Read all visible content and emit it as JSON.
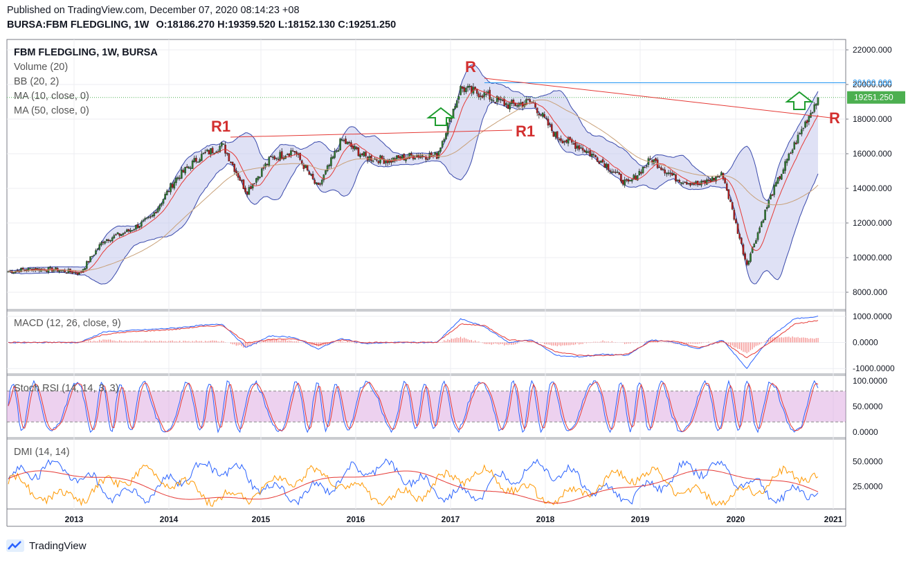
{
  "header": {
    "published": "Published on TradingView.com, December 07, 2020 08:14:23 +08",
    "symbol": "BURSA:FBM FLEDGLING, 1W",
    "o_label": "O:",
    "o_value": "18186.270",
    "h_label": "H:",
    "h_value": "19359.520",
    "l_label": "L:",
    "l_value": "18152.130",
    "c_label": "C:",
    "c_value": "19251.250"
  },
  "legend": {
    "title": "FBM FLEDGLING, 1W, BURSA",
    "volume": "Volume (20)",
    "bb": "BB (20, 2)",
    "ma10": "MA (10, close, 0)",
    "ma50": "MA (50, close, 0)",
    "macd": "MACD (12, 26, close, 9)",
    "stoch": "Stoch RSI (14, 14, 3, 3)",
    "dmi": "DMI (14, 14)"
  },
  "branding": {
    "name": "TradingView"
  },
  "colors": {
    "up": "#2f7d32",
    "down": "#b71c1c",
    "bb_line": "#3949ab",
    "bb_fill": "#c5c8ec",
    "ma10": "#e53935",
    "ma50": "#c8a078",
    "resistance": "#e53935",
    "annotation_text": "#d32f2f",
    "arrow": "#1e9c2e",
    "level_line": "#2196f3",
    "price_tag": "#4caf50",
    "macd_line": "#2962ff",
    "signal_line": "#e53935",
    "hist": "#ef5350",
    "stoch_k": "#2962ff",
    "stoch_d": "#e53935",
    "stoch_band": "#dba4e0",
    "dmi_plus": "#2962ff",
    "dmi_minus": "#ff9800",
    "adx": "#e53935"
  },
  "chart_data": [
    {
      "type": "candlestick",
      "title": "FBM FLEDGLING, 1W, BURSA",
      "x": [
        "2012-06",
        "2012-09",
        "2012-12",
        "2013-03",
        "2013-06",
        "2013-09",
        "2013-12",
        "2014-03",
        "2014-06",
        "2014-09",
        "2014-12",
        "2015-03",
        "2015-06",
        "2015-09",
        "2015-12",
        "2016-03",
        "2016-06",
        "2016-09",
        "2016-12",
        "2017-03",
        "2017-06",
        "2017-09",
        "2017-12",
        "2018-03",
        "2018-06",
        "2018-09",
        "2018-12",
        "2019-03",
        "2019-06",
        "2019-09",
        "2019-12",
        "2020-03",
        "2020-06",
        "2020-09",
        "2020-12"
      ],
      "close": [
        9200,
        9350,
        9300,
        9100,
        11000,
        11500,
        12300,
        14500,
        15800,
        16500,
        13800,
        15700,
        16200,
        14000,
        16800,
        15800,
        15600,
        15900,
        15900,
        19800,
        19400,
        18800,
        19000,
        17000,
        16400,
        15500,
        14200,
        15700,
        14600,
        14200,
        14800,
        9600,
        13500,
        16500,
        19251
      ],
      "x_ticks": [
        "2013",
        "2014",
        "2015",
        "2016",
        "2017",
        "2018",
        "2019",
        "2020",
        "2021"
      ],
      "y_ticks": [
        "22000.000",
        "20000.000",
        "18000.000",
        "16000.000",
        "14000.000",
        "12000.000",
        "10000.000",
        "8000.000"
      ],
      "ylim": [
        7000,
        22600
      ],
      "level_label": "20100.000",
      "last_price": "19251.250",
      "annotations": {
        "r1_left": "R1",
        "r1_right": "R1",
        "r_top": "R",
        "r_right": "R"
      },
      "overlays": [
        "BB (20, 2)",
        "MA (10, close, 0)",
        "MA (50, close, 0)"
      ]
    },
    {
      "type": "line",
      "title": "MACD (12, 26, close, 9)",
      "y_ticks": [
        "1000.0000",
        "0.0000",
        "-1000.0000"
      ],
      "ylim": [
        -1100,
        1100
      ],
      "macd": [
        0,
        0,
        0,
        0,
        400,
        450,
        500,
        550,
        650,
        700,
        -200,
        250,
        200,
        -250,
        150,
        -50,
        0,
        0,
        0,
        900,
        600,
        0,
        100,
        -500,
        -550,
        -450,
        -500,
        100,
        0,
        -250,
        100,
        -1000,
        200,
        900,
        1000
      ],
      "signal": [
        0,
        0,
        0,
        0,
        300,
        400,
        450,
        500,
        600,
        650,
        0,
        100,
        150,
        -100,
        100,
        0,
        0,
        0,
        0,
        700,
        650,
        100,
        50,
        -350,
        -500,
        -500,
        -450,
        50,
        50,
        -200,
        50,
        -600,
        0,
        700,
        850
      ]
    },
    {
      "type": "line",
      "title": "Stoch RSI (14, 14, 3, 3)",
      "y_ticks": [
        "100.0000",
        "50.0000",
        "0.0000"
      ],
      "ylim": [
        0,
        100
      ],
      "band": [
        20,
        80
      ]
    },
    {
      "type": "line",
      "title": "DMI (14, 14)",
      "y_ticks": [
        "50.0000",
        "25.0000"
      ],
      "ylim": [
        5,
        70
      ]
    }
  ]
}
